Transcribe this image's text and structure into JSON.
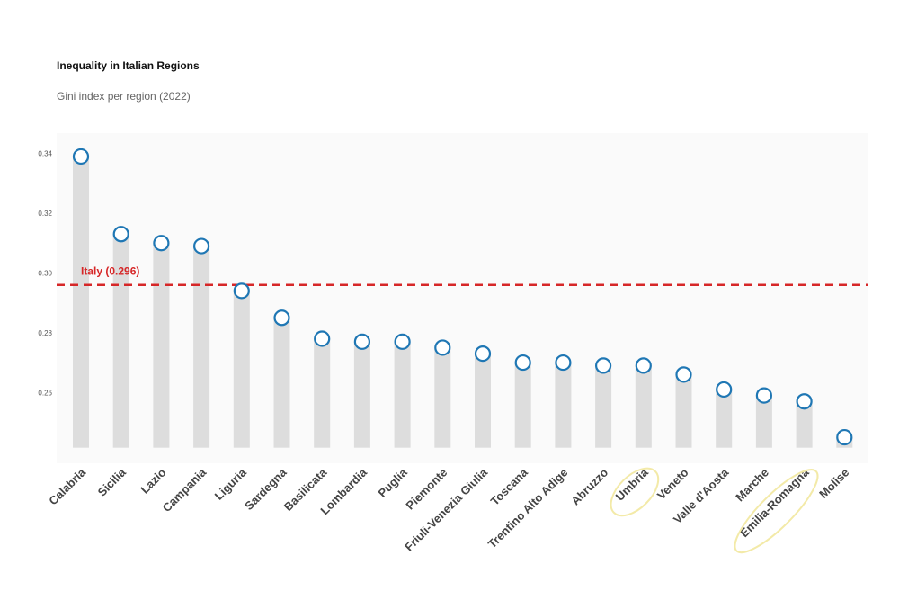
{
  "header": {
    "title": "Inequality in Italian Regions",
    "subtitle": "Gini index per region (2022)"
  },
  "chart_data": {
    "type": "lollipop",
    "categories": [
      "Calabria",
      "Sicilia",
      "Lazio",
      "Campania",
      "Liguria",
      "Sardegna",
      "Basilicata",
      "Lombardia",
      "Puglia",
      "Piemonte",
      "Friuli-Venezia Giulia",
      "Toscana",
      "Trentino Alto Adige",
      "Abruzzo",
      "Umbria",
      "Veneto",
      "Valle d'Aosta",
      "Marche",
      "Emilia-Romagna",
      "Molise"
    ],
    "values": [
      0.339,
      0.313,
      0.31,
      0.309,
      0.294,
      0.285,
      0.278,
      0.277,
      0.277,
      0.275,
      0.273,
      0.27,
      0.27,
      0.269,
      0.269,
      0.266,
      0.261,
      0.259,
      0.257,
      0.245
    ],
    "yticks": [
      0.26,
      0.28,
      0.3,
      0.32,
      0.34
    ],
    "ylim": [
      0.2415,
      0.3432
    ],
    "reference": {
      "label": "Italy (0.296)",
      "value": 0.296,
      "color": "#d62728"
    },
    "highlighted": [
      "Umbria",
      "Emilia-Romagna"
    ],
    "colors": {
      "marker": "#1f77b4",
      "stem": "#dddddd",
      "panel": "#fafafa",
      "highlight": "#f3eaa8"
    },
    "grid": false
  }
}
